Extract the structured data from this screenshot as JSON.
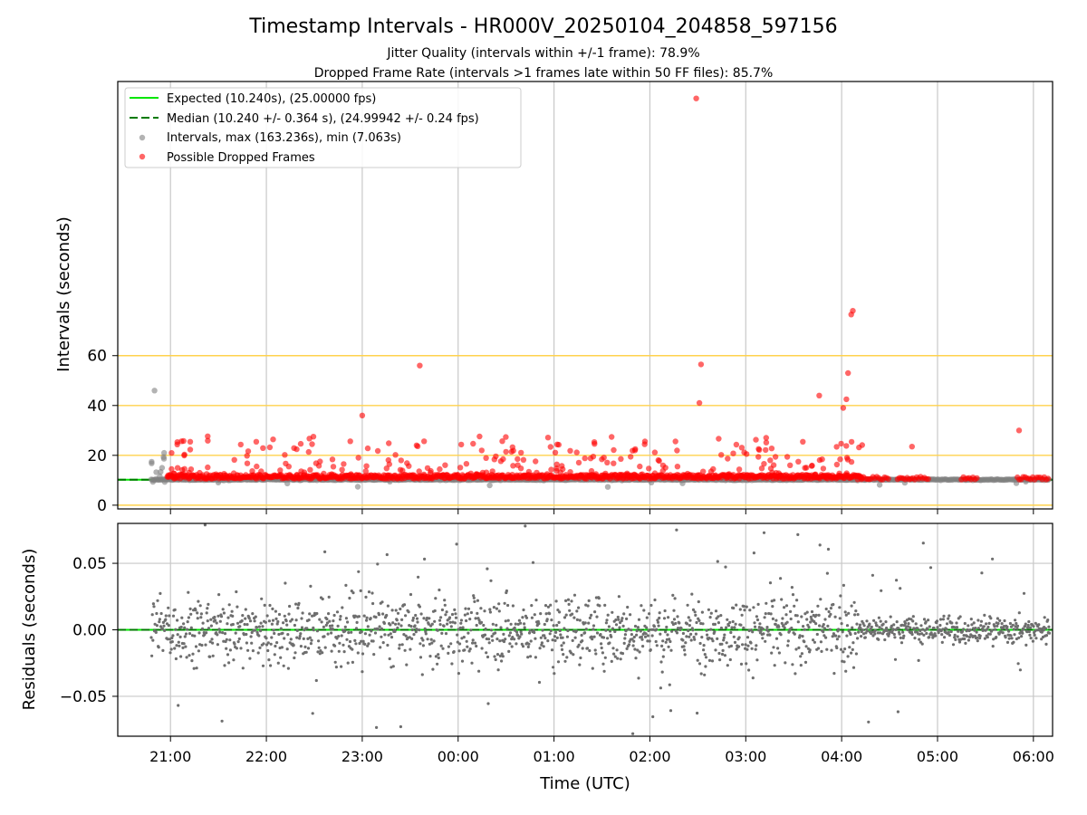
{
  "title": "Timestamp Intervals - HR000V_20250104_204858_597156",
  "subtitle_1": "Jitter Quality (intervals within +/-1 frame): 78.9%",
  "subtitle_2": "Dropped Frame Rate (intervals >1 frames late within 50 FF files): 85.7%",
  "xlabel": "Time (UTC)",
  "colors": {
    "expected": "#00e600",
    "median": "#007a00",
    "intervals": "#808080",
    "dropped": "#ff0000",
    "threshold": "#ffd24d",
    "grid": "#c8c8c8"
  },
  "chart_data": [
    {
      "type": "scatter",
      "panel": "top",
      "ylabel": "Intervals (seconds)",
      "yticks": [
        0,
        20,
        40,
        60
      ],
      "ylim": [
        -1.5,
        170
      ],
      "xticks": [
        "21:00",
        "22:00",
        "23:00",
        "00:00",
        "01:00",
        "02:00",
        "03:00",
        "04:00",
        "05:00",
        "06:00"
      ],
      "xlim_hours": [
        -0.55,
        9.2
      ],
      "grid": "vertical at x ticks",
      "threshold_lines_y": [
        0,
        20,
        40,
        60
      ],
      "legend": {
        "placement": "top-left",
        "entries": [
          "Expected (10.240s), (25.00000 fps)",
          "Median (10.240 +/- 0.364 s), (24.99942 +/- 0.24 fps)",
          "Intervals, max (163.236s), min (7.063s)",
          "Possible Dropped Frames"
        ]
      },
      "expected_interval": 10.24,
      "median_interval": 10.24,
      "x_range_of_samples": [
        "20:48",
        "06:10"
      ],
      "notable_points": [
        {
          "x": "20:50",
          "y": 46.0,
          "series": "Intervals"
        },
        {
          "x": "20:56",
          "y": 21.0,
          "series": "Intervals"
        },
        {
          "x": "23:36",
          "y": 56.0,
          "series": "Possible Dropped Frames"
        },
        {
          "x": "23:00",
          "y": 36.0,
          "series": "Possible Dropped Frames"
        },
        {
          "x": "02:29",
          "y": 163.2,
          "series": "Possible Dropped Frames"
        },
        {
          "x": "02:32",
          "y": 56.5,
          "series": "Possible Dropped Frames"
        },
        {
          "x": "02:31",
          "y": 41.0,
          "series": "Possible Dropped Frames"
        },
        {
          "x": "03:46",
          "y": 44.0,
          "series": "Possible Dropped Frames"
        },
        {
          "x": "04:07",
          "y": 78.0,
          "series": "Possible Dropped Frames"
        },
        {
          "x": "04:06",
          "y": 76.5,
          "series": "Possible Dropped Frames"
        },
        {
          "x": "04:04",
          "y": 53.0,
          "series": "Possible Dropped Frames"
        },
        {
          "x": "04:03",
          "y": 42.5,
          "series": "Possible Dropped Frames"
        },
        {
          "x": "04:01",
          "y": 39.0,
          "series": "Possible Dropped Frames"
        },
        {
          "x": "05:51",
          "y": 30.0,
          "series": "Possible Dropped Frames"
        },
        {
          "x": "04:44",
          "y": 23.5,
          "series": "Possible Dropped Frames"
        }
      ]
    },
    {
      "type": "scatter",
      "panel": "bottom",
      "ylabel": "Residuals (seconds)",
      "yticks": [
        "−0.05",
        "0.00",
        "0.05"
      ],
      "ylim": [
        -0.08,
        0.08
      ],
      "xticks": [
        "21:00",
        "22:00",
        "23:00",
        "00:00",
        "01:00",
        "02:00",
        "03:00",
        "04:00",
        "05:00",
        "06:00"
      ],
      "xlim_hours": [
        -0.55,
        9.2
      ],
      "grid": "both",
      "zero_lines": [
        "expected",
        "median"
      ],
      "residual_spread_seconds": {
        "before_04:10": 0.02,
        "after_04:10": 0.008
      },
      "x_range_of_samples": [
        "20:48",
        "06:10"
      ]
    }
  ]
}
